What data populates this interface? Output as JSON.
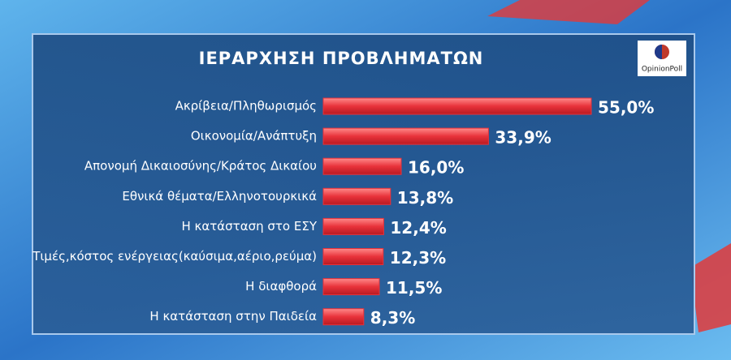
{
  "logo": "OpinionPoll",
  "chart_data": {
    "type": "bar",
    "title": "ΙΕΡΑΡΧΗΣΗ  ΠΡΟΒΛΗΜΑΤΩΝ",
    "categories": [
      "Ακρίβεια/Πληθωρισμός",
      "Οικονομία/Ανάπτυξη",
      "Απονομή Δικαιοσύνης/Κράτος Δικαίου",
      "Εθνικά θέματα/Ελληνοτουρκικά",
      "Η κατάσταση στο ΕΣΥ",
      "Τιμές,κόστος ενέργειας(καύσιμα,αέριο,ρεύμα)",
      "Η διαφθορά",
      "Η κατάσταση στην Παιδεία"
    ],
    "values": [
      55.0,
      33.9,
      16.0,
      13.8,
      12.4,
      12.3,
      11.5,
      8.3
    ],
    "value_labels": [
      "55,0%",
      "33,9%",
      "16,0%",
      "13,8%",
      "12,4%",
      "12,3%",
      "11,5%",
      "8,3%"
    ],
    "color": "#e8323a"
  }
}
